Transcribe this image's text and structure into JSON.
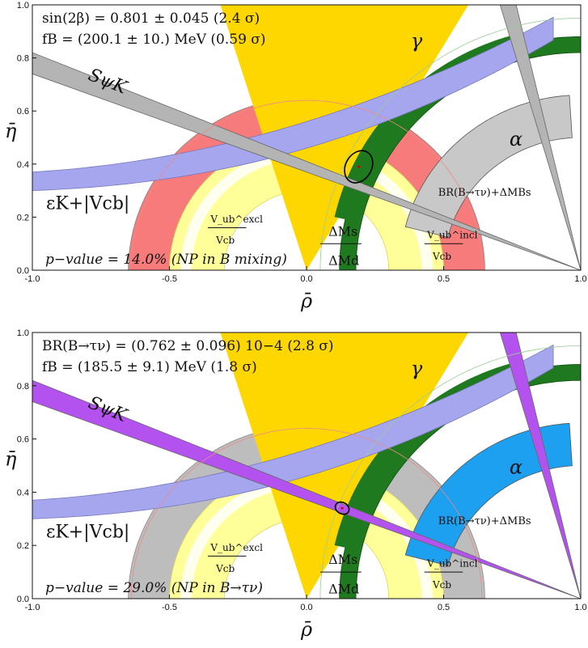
{
  "chart_data": [
    {
      "type": "other",
      "xlabel": "ρ̄",
      "ylabel": "η̄",
      "xlim": [
        -1.0,
        1.0
      ],
      "ylim": [
        0.0,
        1.0
      ],
      "xticks": [
        "-1.0",
        "-0.5",
        "0.0",
        "0.5",
        "1.0"
      ],
      "yticks": [
        "0.0",
        "0.2",
        "0.4",
        "0.6",
        "0.8",
        "1.0"
      ],
      "header_lines": [
        "sin(2β) = 0.801 ± 0.045 (2.4 σ)",
        "fB = (200.1 ± 10.) MeV (0.59 σ)"
      ],
      "pvalue": "p−value =  14.0% (NP in B mixing)",
      "labels": {
        "gamma": "γ",
        "alpha": "α",
        "spsik": "SψK",
        "epsk": "εK+|Vcb|",
        "brtau": "BR(B→τν)+ΔMBs",
        "dms": "ΔMs",
        "dmd": "ΔMd",
        "vubexcl_num": "V_ub^excl",
        "vubexcl_den": "Vcb",
        "vubincl_num": "V_ub^incl",
        "vubincl_den": "Vcb"
      },
      "best_fit": {
        "rho": 0.19,
        "eta": 0.39
      },
      "colors": {
        "gamma": "#ffd700",
        "dm": "#1f7a1f",
        "eps": "#a6a6ee",
        "spsik": "#b4b4b4",
        "alpha": "#c8c8c8",
        "vub": "#ffff99",
        "brtau_annulus": "#f77b7b"
      }
    },
    {
      "type": "other",
      "xlabel": "ρ̄",
      "ylabel": "η̄",
      "xlim": [
        -1.0,
        1.0
      ],
      "ylim": [
        0.0,
        1.0
      ],
      "xticks": [
        "-1.0",
        "-0.5",
        "0.0",
        "0.5",
        "1.0"
      ],
      "yticks": [
        "0.0",
        "0.2",
        "0.4",
        "0.6",
        "0.8",
        "1.0"
      ],
      "header_lines": [
        "BR(B→τν) = (0.762 ± 0.096) 10−4 (2.8 σ)",
        "fB = (185.5 ± 9.1) MeV (1.8 σ)"
      ],
      "pvalue": "p−value =  29.0% (NP in B→τν)",
      "labels": {
        "gamma": "γ",
        "alpha": "α",
        "spsik": "SψK",
        "epsk": "εK+|Vcb|",
        "brtau": "BR(B→τν)+ΔMBs",
        "dms": "ΔMs",
        "dmd": "ΔMd",
        "vubexcl_num": "V_ub^excl",
        "vubexcl_den": "Vcb",
        "vubincl_num": "V_ub^incl",
        "vubincl_den": "Vcb"
      },
      "best_fit": {
        "rho": 0.13,
        "eta": 0.34
      },
      "colors": {
        "gamma": "#ffd700",
        "dm": "#1f7a1f",
        "eps": "#a6a6ee",
        "spsik": "#b452f0",
        "alpha": "#1ea0f0",
        "vub": "#ffff99",
        "brtau_annulus": "#bdbdbd"
      }
    }
  ]
}
